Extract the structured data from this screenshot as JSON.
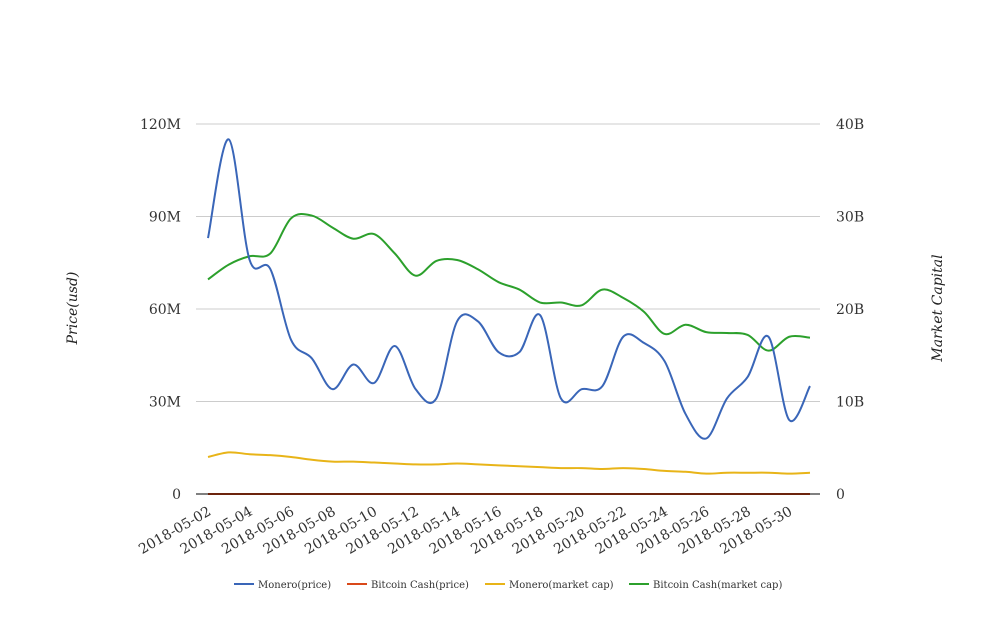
{
  "chart_data": {
    "type": "line",
    "smooth": true,
    "ylabel": "Price(usd)",
    "y2label": "Market Capital",
    "ylim": [
      0,
      120000000
    ],
    "y2lim": [
      0,
      40000000000
    ],
    "y_ticks": [
      0,
      30000000,
      60000000,
      90000000,
      120000000
    ],
    "y_tick_labels": [
      "0",
      "30M",
      "60M",
      "90M",
      "120M"
    ],
    "y2_ticks": [
      0,
      10000000000,
      20000000000,
      30000000000,
      40000000000
    ],
    "y2_tick_labels": [
      "0",
      "10B",
      "20B",
      "30B",
      "40B"
    ],
    "x_tick_labels": [
      "2018-05-02",
      "2018-05-04",
      "2018-05-06",
      "2018-05-08",
      "2018-05-10",
      "2018-05-12",
      "2018-05-14",
      "2018-05-16",
      "2018-05-18",
      "2018-05-20",
      "2018-05-22",
      "2018-05-24",
      "2018-05-26",
      "2018-05-28",
      "2018-05-30"
    ],
    "x": [
      "2018-05-02",
      "2018-05-03",
      "2018-05-04",
      "2018-05-05",
      "2018-05-06",
      "2018-05-07",
      "2018-05-08",
      "2018-05-09",
      "2018-05-10",
      "2018-05-11",
      "2018-05-12",
      "2018-05-13",
      "2018-05-14",
      "2018-05-15",
      "2018-05-16",
      "2018-05-17",
      "2018-05-18",
      "2018-05-19",
      "2018-05-20",
      "2018-05-21",
      "2018-05-22",
      "2018-05-23",
      "2018-05-24",
      "2018-05-25",
      "2018-05-26",
      "2018-05-27",
      "2018-05-28",
      "2018-05-29",
      "2018-05-30",
      "2018-05-31"
    ],
    "grid": true,
    "legend_position": "bottom",
    "series": [
      {
        "name": "Monero(price)",
        "axis": "left",
        "color": "#3a66b8",
        "values": [
          83000000,
          115000000,
          76000000,
          73000000,
          50000000,
          44000000,
          34000000,
          42000000,
          36000000,
          48000000,
          34000000,
          31000000,
          56000000,
          56000000,
          46000000,
          46000000,
          58000000,
          31000000,
          34000000,
          35000000,
          51000000,
          49000000,
          43000000,
          26000000,
          18000000,
          31000000,
          38000000,
          51000000,
          24000000,
          35000000
        ]
      },
      {
        "name": "Bitcoin Cash(price)",
        "axis": "left",
        "color": "#d9491a",
        "values": [
          1500,
          1650,
          1750,
          1800,
          1750,
          1650,
          1450,
          1500,
          1500,
          1400,
          1350,
          1400,
          1400,
          1380,
          1300,
          1250,
          1200,
          1200,
          1180,
          1150,
          1150,
          1100,
          1000,
          1050,
          1000,
          1050,
          1000,
          930,
          1000,
          1000
        ]
      },
      {
        "name": "Monero(market cap)",
        "axis": "right",
        "color": "#e8b418",
        "values": [
          4000000000,
          4500000000,
          4300000000,
          4200000000,
          4000000000,
          3700000000,
          3500000000,
          3500000000,
          3400000000,
          3300000000,
          3200000000,
          3200000000,
          3300000000,
          3200000000,
          3100000000,
          3000000000,
          2900000000,
          2800000000,
          2800000000,
          2700000000,
          2800000000,
          2700000000,
          2500000000,
          2400000000,
          2200000000,
          2300000000,
          2300000000,
          2300000000,
          2200000000,
          2300000000
        ]
      },
      {
        "name": "Bitcoin Cash(market cap)",
        "axis": "right",
        "color": "#2ca02c",
        "values": [
          23200000000,
          24800000000,
          25700000000,
          26000000000,
          29800000000,
          30100000000,
          28800000000,
          27600000000,
          28100000000,
          26000000000,
          23600000000,
          25200000000,
          25300000000,
          24300000000,
          22900000000,
          22100000000,
          20700000000,
          20700000000,
          20400000000,
          22100000000,
          21200000000,
          19700000000,
          17300000000,
          18300000000,
          17500000000,
          17400000000,
          17200000000,
          15500000000,
          17000000000,
          16900000000
        ]
      }
    ]
  }
}
